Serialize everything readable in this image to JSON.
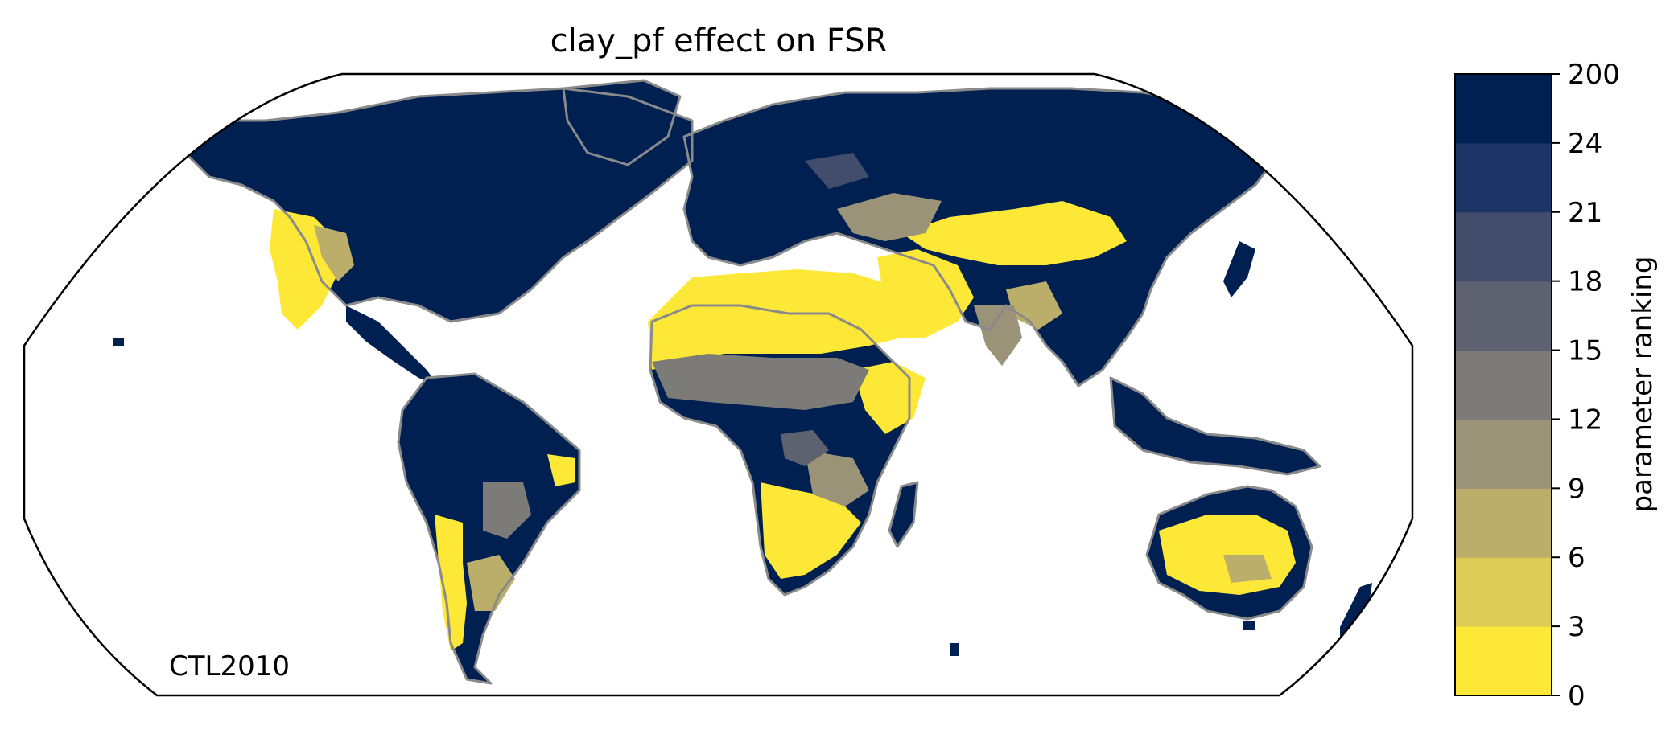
{
  "map": {
    "title": "clay_pf effect on FSR",
    "projection": "robinson",
    "annotation": "CTL2010"
  },
  "colorbar": {
    "label": "parameter ranking",
    "bins": [
      {
        "lo": 0,
        "hi": 3,
        "color": "#fde737"
      },
      {
        "lo": 3,
        "hi": 6,
        "color": "#dccb55"
      },
      {
        "lo": 6,
        "hi": 9,
        "color": "#bbae6a"
      },
      {
        "lo": 9,
        "hi": 12,
        "color": "#9a9378"
      },
      {
        "lo": 12,
        "hi": 15,
        "color": "#7c7b78"
      },
      {
        "lo": 15,
        "hi": 18,
        "color": "#5e6270"
      },
      {
        "lo": 18,
        "hi": 21,
        "color": "#424d6b"
      },
      {
        "lo": 21,
        "hi": 24,
        "color": "#1c3566"
      },
      {
        "lo": 24,
        "hi": 200,
        "color": "#002051"
      }
    ],
    "ticks": [
      "0",
      "3",
      "6",
      "9",
      "12",
      "15",
      "18",
      "21",
      "24",
      "200"
    ]
  }
}
